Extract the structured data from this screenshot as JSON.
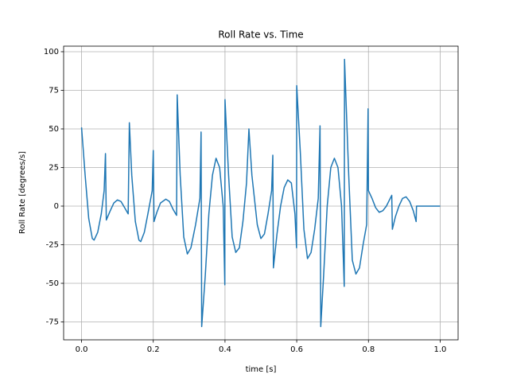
{
  "chart_data": {
    "type": "line",
    "title": "Roll Rate vs. Time",
    "xlabel": "time [s]",
    "ylabel": "Roll Rate [degrees/s]",
    "color": "#1f77b4",
    "grid": true,
    "x": [
      0.0,
      0.01,
      0.02,
      0.03,
      0.035,
      0.045,
      0.055,
      0.063,
      0.0667,
      0.069,
      0.08,
      0.09,
      0.1,
      0.11,
      0.12,
      0.13,
      0.1333,
      0.14,
      0.15,
      0.16,
      0.165,
      0.175,
      0.185,
      0.197,
      0.2,
      0.202,
      0.21,
      0.22,
      0.235,
      0.245,
      0.255,
      0.265,
      0.2667,
      0.275,
      0.285,
      0.295,
      0.305,
      0.318,
      0.33,
      0.3333,
      0.335,
      0.345,
      0.355,
      0.365,
      0.375,
      0.385,
      0.395,
      0.3995,
      0.4,
      0.41,
      0.42,
      0.43,
      0.44,
      0.45,
      0.46,
      0.4667,
      0.475,
      0.49,
      0.5,
      0.51,
      0.52,
      0.53,
      0.5333,
      0.535,
      0.545,
      0.555,
      0.565,
      0.575,
      0.585,
      0.595,
      0.5995,
      0.6,
      0.61,
      0.62,
      0.63,
      0.64,
      0.65,
      0.66,
      0.665,
      0.667,
      0.675,
      0.685,
      0.695,
      0.705,
      0.715,
      0.725,
      0.7325,
      0.7333,
      0.745,
      0.755,
      0.765,
      0.775,
      0.785,
      0.795,
      0.799,
      0.8,
      0.81,
      0.82,
      0.83,
      0.84,
      0.85,
      0.865,
      0.8667,
      0.875,
      0.885,
      0.895,
      0.905,
      0.915,
      0.925,
      0.933,
      0.934,
      1.0
    ],
    "values": [
      51,
      20,
      -8,
      -21,
      -22,
      -17,
      -5,
      10,
      34,
      -9,
      -3,
      2,
      4,
      3,
      -1,
      -5,
      54,
      20,
      -10,
      -22,
      -23,
      -17,
      -5,
      10,
      36,
      -10,
      -4,
      2,
      4.5,
      3,
      -2,
      -6,
      72,
      20,
      -20,
      -31,
      -27,
      -12,
      5,
      48,
      -78,
      -45,
      -5,
      20,
      31,
      25,
      0,
      -51,
      69,
      20,
      -20,
      -30,
      -27,
      -10,
      15,
      50,
      20,
      -12,
      -21,
      -18,
      -5,
      10,
      33,
      -40,
      -18,
      0,
      12,
      17,
      15,
      -5,
      -27,
      78,
      35,
      -15,
      -34,
      -30,
      -15,
      5,
      52,
      -78,
      -45,
      0,
      25,
      31,
      25,
      0,
      -52,
      95,
      20,
      -35,
      -44,
      -40,
      -25,
      -12,
      63,
      10,
      5,
      -1,
      -4,
      -3,
      0,
      7,
      -15,
      -7,
      0,
      5,
      6,
      3,
      -3,
      -10,
      0,
      0
    ],
    "xlim": [
      -0.05,
      1.05
    ],
    "ylim": [
      -86.6,
      103.6
    ],
    "xticks": [
      {
        "value": 0,
        "label": "0.0"
      },
      {
        "value": 0.2,
        "label": "0.2"
      },
      {
        "value": 0.4,
        "label": "0.4"
      },
      {
        "value": 0.6,
        "label": "0.6"
      },
      {
        "value": 0.8,
        "label": "0.8"
      },
      {
        "value": 1,
        "label": "1.0"
      }
    ],
    "yticks": [
      -75,
      -50,
      -25,
      0,
      25,
      50,
      75,
      100
    ]
  }
}
